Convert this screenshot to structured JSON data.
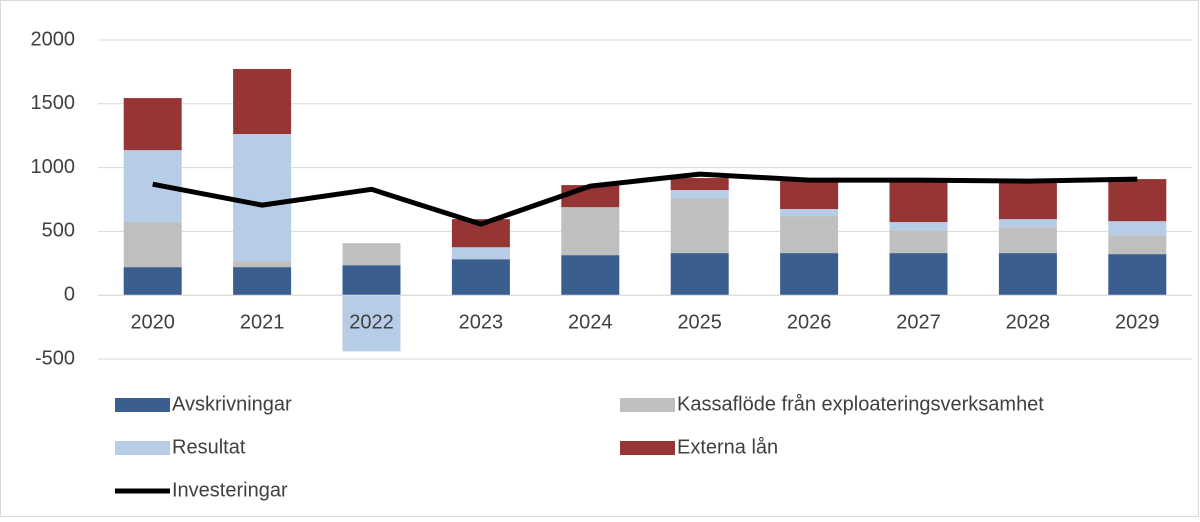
{
  "chart_data": {
    "type": "bar",
    "stacked": true,
    "categories": [
      "2020",
      "2021",
      "2022",
      "2023",
      "2024",
      "2025",
      "2026",
      "2027",
      "2028",
      "2029"
    ],
    "series": [
      {
        "name": "Avskrivningar",
        "color": "#3a5f8f",
        "values": [
          220,
          220,
          235,
          282,
          314,
          330,
          330,
          330,
          330,
          322
        ]
      },
      {
        "name": "Kassaflöde från exploateringsverksamhet",
        "color": "#bfbfbf",
        "values": [
          353,
          47,
          173,
          0,
          376,
          431,
          290,
          180,
          203,
          149
        ]
      },
      {
        "name": "Resultat",
        "color": "#b7cce6",
        "values": [
          564,
          996,
          -440,
          94,
          0,
          63,
          55,
          63,
          63,
          109
        ]
      },
      {
        "name": "Externa lån",
        "color": "#963634",
        "values": [
          408,
          510,
          0,
          220,
          173,
          94,
          227,
          329,
          298,
          330
        ]
      },
      {
        "name": "Investeringar",
        "color": "#000000",
        "type": "line",
        "values": [
          870,
          706,
          830,
          557,
          855,
          949,
          902,
          902,
          894,
          910
        ]
      }
    ],
    "ylim": [
      -500,
      2000
    ],
    "yticks": [
      -500,
      0,
      500,
      1000,
      1500,
      2000
    ],
    "grid": true
  }
}
